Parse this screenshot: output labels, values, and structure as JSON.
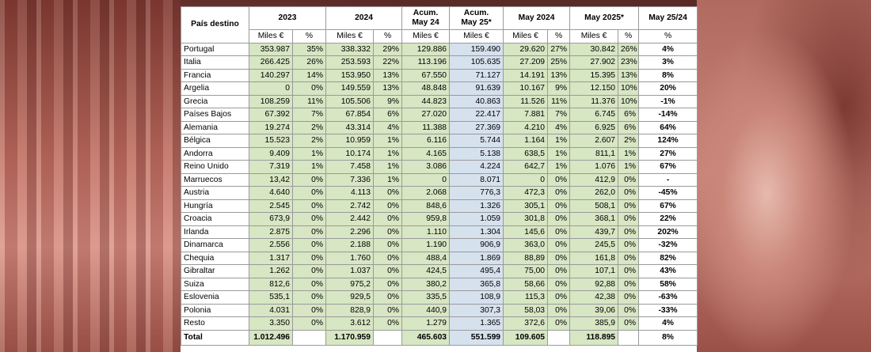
{
  "headers": {
    "country": "País destino",
    "y2023": "2023",
    "y2024": "2024",
    "acum24_l1": "Acum.",
    "acum24_l2": "May 24",
    "acum25_l1": "Acum.",
    "acum25_l2": "May 25*",
    "may2024": "May 2024",
    "may2025": "May 2025*",
    "var": "May 25/24"
  },
  "subheaders": {
    "miles": "Miles €",
    "pct": "%"
  },
  "rows": [
    {
      "country": "Portugal",
      "v2023": "353.987",
      "p2023": "35%",
      "v2024": "338.332",
      "p2024": "29%",
      "acum24": "129.886",
      "acum25": "159.490",
      "may24": "29.620",
      "pmay24": "27%",
      "may25": "30.842",
      "pmay25": "26%",
      "var": "4%"
    },
    {
      "country": "Italia",
      "v2023": "266.425",
      "p2023": "26%",
      "v2024": "253.593",
      "p2024": "22%",
      "acum24": "113.196",
      "acum25": "105.635",
      "may24": "27.209",
      "pmay24": "25%",
      "may25": "27.902",
      "pmay25": "23%",
      "var": "3%"
    },
    {
      "country": "Francia",
      "v2023": "140.297",
      "p2023": "14%",
      "v2024": "153.950",
      "p2024": "13%",
      "acum24": "67.550",
      "acum25": "71.127",
      "may24": "14.191",
      "pmay24": "13%",
      "may25": "15.395",
      "pmay25": "13%",
      "var": "8%"
    },
    {
      "country": "Argelia",
      "v2023": "0",
      "p2023": "0%",
      "v2024": "149.559",
      "p2024": "13%",
      "acum24": "48.848",
      "acum25": "91.639",
      "may24": "10.167",
      "pmay24": "9%",
      "may25": "12.150",
      "pmay25": "10%",
      "var": "20%"
    },
    {
      "country": "Grecia",
      "v2023": "108.259",
      "p2023": "11%",
      "v2024": "105.506",
      "p2024": "9%",
      "acum24": "44.823",
      "acum25": "40.863",
      "may24": "11.526",
      "pmay24": "11%",
      "may25": "11.376",
      "pmay25": "10%",
      "var": "-1%"
    },
    {
      "country": "Países Bajos",
      "v2023": "67.392",
      "p2023": "7%",
      "v2024": "67.854",
      "p2024": "6%",
      "acum24": "27.020",
      "acum25": "22.417",
      "may24": "7.881",
      "pmay24": "7%",
      "may25": "6.745",
      "pmay25": "6%",
      "var": "-14%"
    },
    {
      "country": "Alemania",
      "v2023": "19.274",
      "p2023": "2%",
      "v2024": "43.314",
      "p2024": "4%",
      "acum24": "11.388",
      "acum25": "27.369",
      "may24": "4.210",
      "pmay24": "4%",
      "may25": "6.925",
      "pmay25": "6%",
      "var": "64%"
    },
    {
      "country": "Bélgica",
      "v2023": "15.523",
      "p2023": "2%",
      "v2024": "10.959",
      "p2024": "1%",
      "acum24": "6.116",
      "acum25": "5.744",
      "may24": "1.164",
      "pmay24": "1%",
      "may25": "2.607",
      "pmay25": "2%",
      "var": "124%"
    },
    {
      "country": "Andorra",
      "v2023": "9.409",
      "p2023": "1%",
      "v2024": "10.174",
      "p2024": "1%",
      "acum24": "4.165",
      "acum25": "5.138",
      "may24": "638,5",
      "pmay24": "1%",
      "may25": "811,1",
      "pmay25": "1%",
      "var": "27%"
    },
    {
      "country": "Reino Unido",
      "v2023": "7.319",
      "p2023": "1%",
      "v2024": "7.458",
      "p2024": "1%",
      "acum24": "3.086",
      "acum25": "4.224",
      "may24": "642,7",
      "pmay24": "1%",
      "may25": "1.076",
      "pmay25": "1%",
      "var": "67%"
    },
    {
      "country": "Marruecos",
      "v2023": "13,42",
      "p2023": "0%",
      "v2024": "7.336",
      "p2024": "1%",
      "acum24": "0",
      "acum25": "8.071",
      "may24": "0",
      "pmay24": "0%",
      "may25": "412,9",
      "pmay25": "0%",
      "var": "-"
    },
    {
      "country": "Austria",
      "v2023": "4.640",
      "p2023": "0%",
      "v2024": "4.113",
      "p2024": "0%",
      "acum24": "2.068",
      "acum25": "776,3",
      "may24": "472,3",
      "pmay24": "0%",
      "may25": "262,0",
      "pmay25": "0%",
      "var": "-45%"
    },
    {
      "country": "Hungría",
      "v2023": "2.545",
      "p2023": "0%",
      "v2024": "2.742",
      "p2024": "0%",
      "acum24": "848,6",
      "acum25": "1.326",
      "may24": "305,1",
      "pmay24": "0%",
      "may25": "508,1",
      "pmay25": "0%",
      "var": "67%"
    },
    {
      "country": "Croacia",
      "v2023": "673,9",
      "p2023": "0%",
      "v2024": "2.442",
      "p2024": "0%",
      "acum24": "959,8",
      "acum25": "1.059",
      "may24": "301,8",
      "pmay24": "0%",
      "may25": "368,1",
      "pmay25": "0%",
      "var": "22%"
    },
    {
      "country": "Irlanda",
      "v2023": "2.875",
      "p2023": "0%",
      "v2024": "2.296",
      "p2024": "0%",
      "acum24": "1.110",
      "acum25": "1.304",
      "may24": "145,6",
      "pmay24": "0%",
      "may25": "439,7",
      "pmay25": "0%",
      "var": "202%"
    },
    {
      "country": "Dinamarca",
      "v2023": "2.556",
      "p2023": "0%",
      "v2024": "2.188",
      "p2024": "0%",
      "acum24": "1.190",
      "acum25": "906,9",
      "may24": "363,0",
      "pmay24": "0%",
      "may25": "245,5",
      "pmay25": "0%",
      "var": "-32%"
    },
    {
      "country": "Chequia",
      "v2023": "1.317",
      "p2023": "0%",
      "v2024": "1.760",
      "p2024": "0%",
      "acum24": "488,4",
      "acum25": "1.869",
      "may24": "88,89",
      "pmay24": "0%",
      "may25": "161,8",
      "pmay25": "0%",
      "var": "82%"
    },
    {
      "country": "Gibraltar",
      "v2023": "1.262",
      "p2023": "0%",
      "v2024": "1.037",
      "p2024": "0%",
      "acum24": "424,5",
      "acum25": "495,4",
      "may24": "75,00",
      "pmay24": "0%",
      "may25": "107,1",
      "pmay25": "0%",
      "var": "43%"
    },
    {
      "country": "Suiza",
      "v2023": "812,6",
      "p2023": "0%",
      "v2024": "975,2",
      "p2024": "0%",
      "acum24": "380,2",
      "acum25": "365,8",
      "may24": "58,66",
      "pmay24": "0%",
      "may25": "92,88",
      "pmay25": "0%",
      "var": "58%"
    },
    {
      "country": "Eslovenia",
      "v2023": "535,1",
      "p2023": "0%",
      "v2024": "929,5",
      "p2024": "0%",
      "acum24": "335,5",
      "acum25": "108,9",
      "may24": "115,3",
      "pmay24": "0%",
      "may25": "42,38",
      "pmay25": "0%",
      "var": "-63%"
    },
    {
      "country": "Polonia",
      "v2023": "4.031",
      "p2023": "0%",
      "v2024": "828,9",
      "p2024": "0%",
      "acum24": "440,9",
      "acum25": "307,3",
      "may24": "58,03",
      "pmay24": "0%",
      "may25": "39,06",
      "pmay25": "0%",
      "var": "-33%"
    },
    {
      "country": "Resto",
      "v2023": "3.350",
      "p2023": "0%",
      "v2024": "3.612",
      "p2024": "0%",
      "acum24": "1.279",
      "acum25": "1.365",
      "may24": "372,6",
      "pmay24": "0%",
      "may25": "385,9",
      "pmay25": "0%",
      "var": "4%"
    }
  ],
  "total": {
    "label": "Total",
    "v2023": "1.012.496",
    "v2024": "1.170.959",
    "acum24": "465.603",
    "acum25": "551.599",
    "may24": "109.605",
    "may25": "118.895",
    "var": "8%"
  },
  "colors": {
    "green": "#d7e6c3",
    "blue": "#d6e1ee"
  }
}
